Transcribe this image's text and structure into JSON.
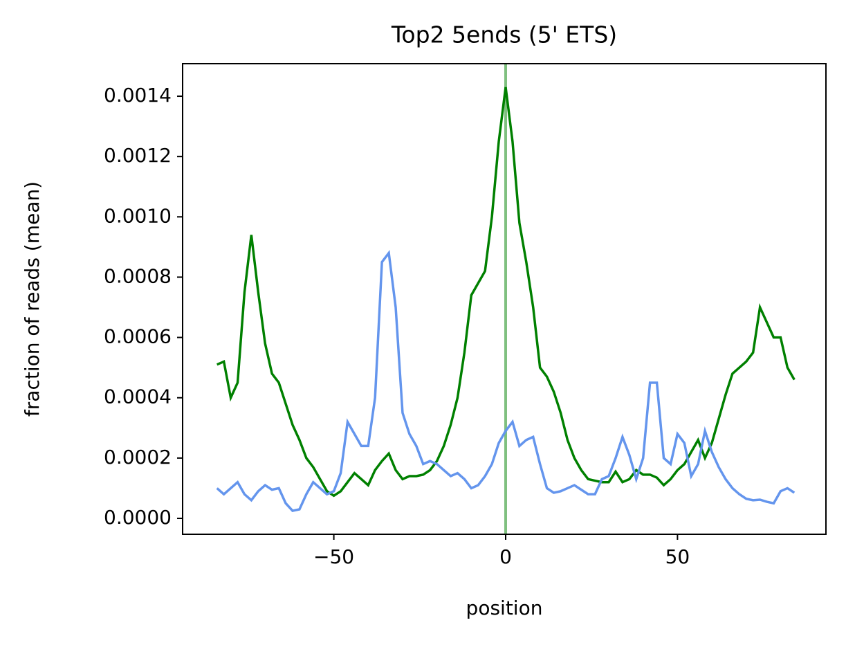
{
  "chart_data": {
    "type": "line",
    "title": "Top2 5ends (5' ETS)",
    "x_label": "position",
    "y_label": "fraction of reads (mean)",
    "x": [
      -84,
      -82,
      -80,
      -78,
      -76,
      -74,
      -72,
      -70,
      -68,
      -66,
      -64,
      -62,
      -60,
      -58,
      -56,
      -54,
      -52,
      -50,
      -48,
      -46,
      -44,
      -42,
      -40,
      -38,
      -36,
      -34,
      -32,
      -30,
      -28,
      -26,
      -24,
      -22,
      -20,
      -18,
      -16,
      -14,
      -12,
      -10,
      -8,
      -6,
      -4,
      -2,
      0,
      2,
      4,
      6,
      8,
      10,
      12,
      14,
      16,
      18,
      20,
      22,
      24,
      26,
      28,
      30,
      32,
      34,
      36,
      38,
      40,
      42,
      44,
      46,
      48,
      50,
      52,
      54,
      56,
      58,
      60,
      62,
      64,
      66,
      68,
      70,
      72,
      74,
      76,
      78,
      80,
      82,
      84
    ],
    "series": [
      {
        "color": "#008000",
        "values": [
          0.00051,
          0.00052,
          0.0004,
          0.00045,
          0.00075,
          0.00094,
          0.00075,
          0.00058,
          0.00048,
          0.00045,
          0.00038,
          0.00031,
          0.00026,
          0.0002,
          0.00017,
          0.00013,
          9e-05,
          7.5e-05,
          9e-05,
          0.00012,
          0.00015,
          0.00013,
          0.00011,
          0.00016,
          0.00019,
          0.000215,
          0.00016,
          0.00013,
          0.00014,
          0.00014,
          0.000145,
          0.00016,
          0.00019,
          0.00024,
          0.00031,
          0.0004,
          0.00055,
          0.00074,
          0.00078,
          0.00082,
          0.001,
          0.00125,
          0.00143,
          0.00125,
          0.00098,
          0.00085,
          0.0007,
          0.0005,
          0.00047,
          0.00042,
          0.00035,
          0.00026,
          0.0002,
          0.00016,
          0.00013,
          0.000125,
          0.00012,
          0.00012,
          0.000155,
          0.00012,
          0.00013,
          0.00016,
          0.000145,
          0.000145,
          0.000135,
          0.00011,
          0.00013,
          0.00016,
          0.00018,
          0.00022,
          0.00026,
          0.0002,
          0.00025,
          0.00033,
          0.00041,
          0.00048,
          0.0005,
          0.00052,
          0.00055,
          0.0007,
          0.00065,
          0.0006,
          0.0006,
          0.0005,
          0.00046
        ]
      },
      {
        "color": "#6495ed",
        "values": [
          0.0001,
          8e-05,
          0.0001,
          0.00012,
          8e-05,
          6e-05,
          9e-05,
          0.00011,
          9.5e-05,
          0.0001,
          5e-05,
          2.5e-05,
          3e-05,
          8e-05,
          0.00012,
          0.0001,
          8e-05,
          9e-05,
          0.00015,
          0.00032,
          0.00028,
          0.00024,
          0.00024,
          0.0004,
          0.00085,
          0.00088,
          0.0007,
          0.00035,
          0.00028,
          0.00024,
          0.00018,
          0.00019,
          0.00018,
          0.00016,
          0.00014,
          0.00015,
          0.00013,
          0.0001,
          0.00011,
          0.00014,
          0.00018,
          0.00025,
          0.00029,
          0.00032,
          0.00024,
          0.00026,
          0.00027,
          0.00018,
          0.0001,
          8.5e-05,
          9e-05,
          0.0001,
          0.00011,
          9.5e-05,
          8e-05,
          8e-05,
          0.00013,
          0.00014,
          0.0002,
          0.00027,
          0.00021,
          0.00013,
          0.0002,
          0.00045,
          0.00045,
          0.0002,
          0.00018,
          0.00028,
          0.00025,
          0.00014,
          0.00018,
          0.00029,
          0.00022,
          0.00017,
          0.00013,
          0.0001,
          8e-05,
          6.5e-05,
          6e-05,
          6.2e-05,
          5.5e-05,
          5e-05,
          9e-05,
          0.0001,
          8.5e-05
        ]
      }
    ],
    "vline": {
      "x": 0,
      "color": "#7fc07f"
    },
    "xlim": [
      -94,
      93.2
    ],
    "ylim": [
      -5.28e-05,
      0.001508
    ],
    "xticks": [
      {
        "value": -50,
        "label": "−50"
      },
      0,
      50
    ],
    "yticks": [
      {
        "value": 0,
        "label": "0.0000"
      },
      {
        "value": 0.0002,
        "label": "0.0002"
      },
      {
        "value": 0.0004,
        "label": "0.0004"
      },
      {
        "value": 0.0006,
        "label": "0.0006"
      },
      {
        "value": 0.0008,
        "label": "0.0008"
      },
      {
        "value": 0.001,
        "label": "0.0010"
      },
      {
        "value": 0.0012,
        "label": "0.0012"
      },
      {
        "value": 0.0014,
        "label": "0.0014"
      }
    ],
    "grid": false
  }
}
